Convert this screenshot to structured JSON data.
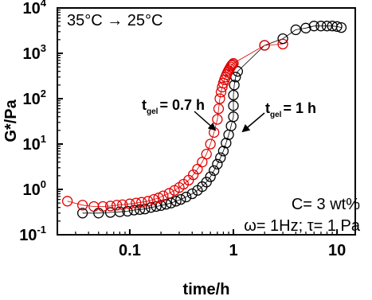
{
  "chart_data": {
    "type": "scatter",
    "title": "35°C → 25°C",
    "xlabel": "time/h",
    "ylabel": "G*/Pa",
    "xscale": "log",
    "yscale": "log",
    "xlim": [
      0.02,
      15
    ],
    "ylim": [
      0.1,
      10000
    ],
    "x_ticks": [
      "0.1",
      "1",
      "10"
    ],
    "y_ticks": [
      {
        "base": "10",
        "exp": "-1",
        "value": 0.1
      },
      {
        "base": "10",
        "exp": "0",
        "value": 1
      },
      {
        "base": "10",
        "exp": "1",
        "value": 10
      },
      {
        "base": "10",
        "exp": "2",
        "value": 100
      },
      {
        "base": "10",
        "exp": "3",
        "value": 1000
      },
      {
        "base": "10",
        "exp": "4",
        "value": 10000
      }
    ],
    "marker": "open-circle",
    "series": [
      {
        "color": "#000000",
        "x": [
          0.035,
          0.05,
          0.065,
          0.08,
          0.095,
          0.11,
          0.125,
          0.14,
          0.16,
          0.18,
          0.2,
          0.225,
          0.25,
          0.28,
          0.31,
          0.35,
          0.4,
          0.45,
          0.5,
          0.55,
          0.6,
          0.65,
          0.7,
          0.75,
          0.8,
          0.85,
          0.9,
          0.95,
          1.0,
          1.0,
          1.0,
          1.02,
          1.05,
          1.1,
          2.0,
          3.0,
          4.0,
          5.0,
          6.0,
          7.0,
          8.0,
          9.0,
          10.0,
          11.0
        ],
        "y": [
          0.3,
          0.3,
          0.31,
          0.32,
          0.33,
          0.35,
          0.36,
          0.37,
          0.4,
          0.42,
          0.44,
          0.47,
          0.5,
          0.55,
          0.6,
          0.68,
          0.8,
          0.95,
          1.15,
          1.45,
          1.9,
          2.6,
          3.6,
          5.0,
          7.0,
          10.5,
          16,
          25,
          40,
          70,
          120,
          200,
          300,
          400,
          1500,
          2100,
          3300,
          3600,
          4000,
          4000,
          4000,
          4000,
          3900,
          3700
        ]
      },
      {
        "color": "#e00000",
        "x": [
          0.025,
          0.035,
          0.045,
          0.055,
          0.065,
          0.075,
          0.085,
          0.1,
          0.115,
          0.13,
          0.15,
          0.17,
          0.19,
          0.21,
          0.24,
          0.27,
          0.3,
          0.33,
          0.37,
          0.41,
          0.45,
          0.5,
          0.55,
          0.6,
          0.65,
          0.7,
          0.72,
          0.74,
          0.76,
          0.78,
          0.8,
          0.82,
          0.84,
          0.86,
          0.88,
          0.9,
          0.92,
          0.94,
          0.96,
          0.98,
          1.0,
          2.0,
          3.0
        ],
        "y": [
          0.55,
          0.45,
          0.42,
          0.42,
          0.43,
          0.45,
          0.46,
          0.48,
          0.5,
          0.52,
          0.55,
          0.6,
          0.65,
          0.72,
          0.82,
          0.95,
          1.1,
          1.3,
          1.6,
          2.1,
          2.8,
          4.0,
          6.0,
          10,
          18,
          35,
          60,
          100,
          140,
          180,
          220,
          260,
          300,
          340,
          380,
          420,
          460,
          500,
          540,
          570,
          600,
          1500,
          1600
        ]
      }
    ],
    "annotations": [
      {
        "text_main": "t",
        "text_sub": "gel",
        "text_value": "= 0.7 h",
        "x": 0.7,
        "y": 35
      },
      {
        "text_main": "t",
        "text_sub": "gel",
        "text_value": "= 1 h",
        "x": 1.0,
        "y": 70
      }
    ],
    "conditions": {
      "concentration": "C= 3 wt%",
      "oscillation": "ω= 1Hz; τ= 1 Pa"
    }
  }
}
